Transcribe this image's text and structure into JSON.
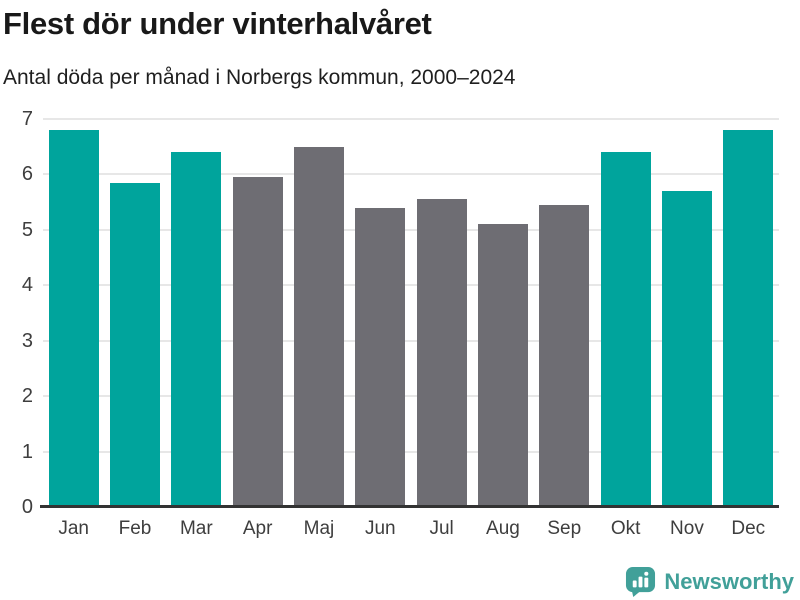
{
  "header": {
    "title": "Flest dör under vinterhalvåret",
    "subtitle": "Antal döda per månad i Norbergs kommun, 2000–2024"
  },
  "chart_data": {
    "type": "bar",
    "title": "Flest dör under vinterhalvåret",
    "subtitle": "Antal döda per månad i Norbergs kommun, 2000–2024",
    "categories": [
      "Jan",
      "Feb",
      "Mar",
      "Apr",
      "Maj",
      "Jun",
      "Jul",
      "Aug",
      "Sep",
      "Okt",
      "Nov",
      "Dec"
    ],
    "values": [
      6.8,
      5.85,
      6.4,
      5.95,
      6.5,
      5.4,
      5.55,
      5.1,
      5.45,
      6.4,
      5.7,
      6.8
    ],
    "bar_color_keys": [
      "winter",
      "winter",
      "winter",
      "summer",
      "summer",
      "summer",
      "summer",
      "summer",
      "summer",
      "winter",
      "winter",
      "winter"
    ],
    "colors": {
      "winter": "#00a49c",
      "summer": "#6e6d73"
    },
    "ylabel": "",
    "xlabel": "",
    "ylim": [
      0,
      7
    ],
    "yticks": [
      0,
      1,
      2,
      3,
      4,
      5,
      6,
      7
    ],
    "grid": true,
    "legend": "none"
  },
  "footer": {
    "brand": "Newsworthy",
    "brand_color": "#41a099",
    "logo_icon": "bar-chart-speech-bubble-icon"
  }
}
